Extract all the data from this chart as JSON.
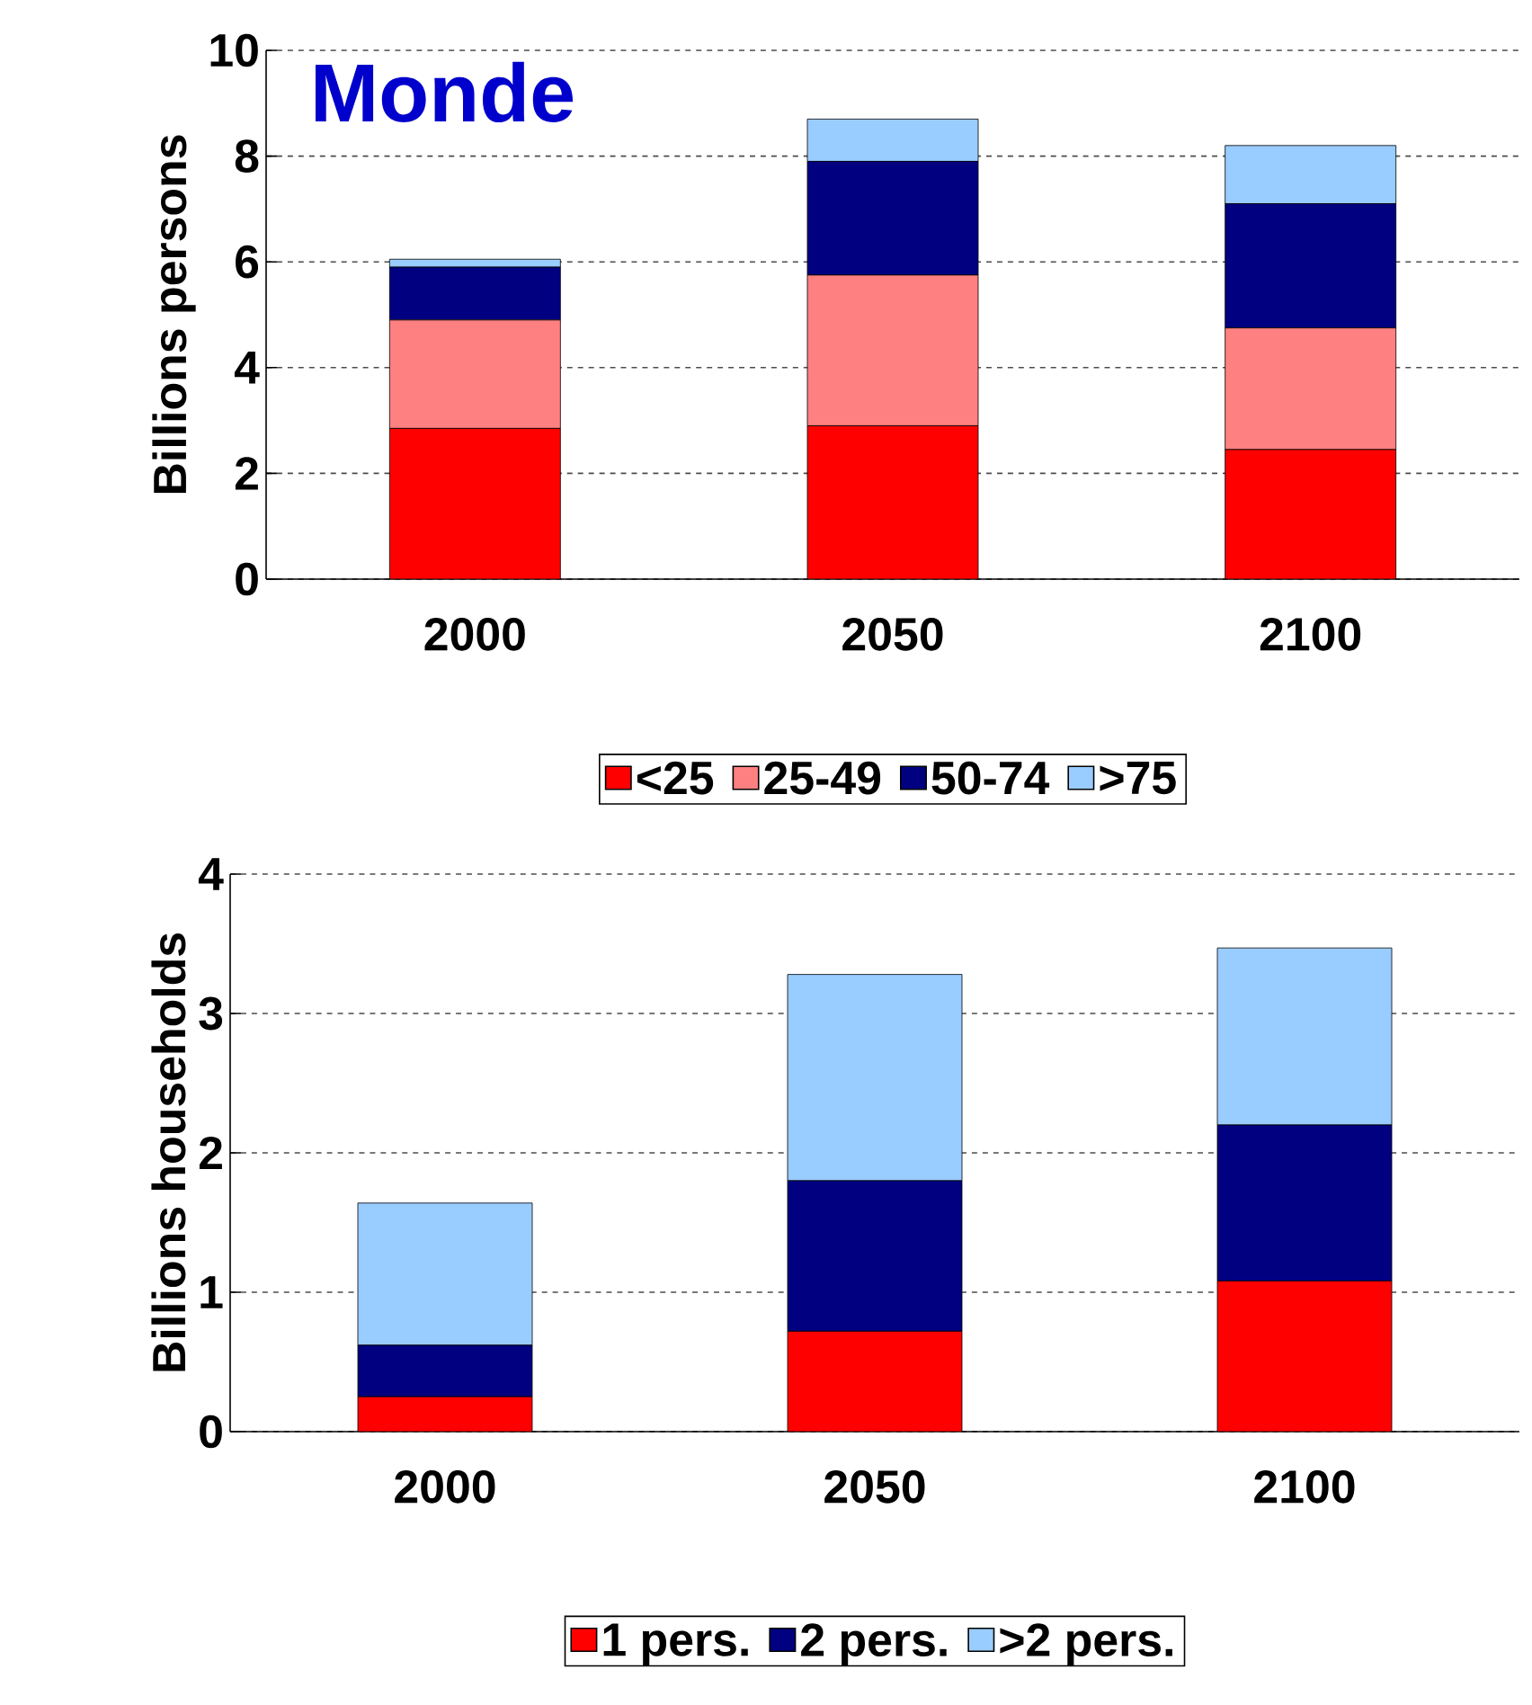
{
  "chart_data": [
    {
      "type": "bar",
      "title": "Monde",
      "ylabel": "Billions persons",
      "categories": [
        "2000",
        "2050",
        "2100"
      ],
      "stacked": true,
      "ylim": [
        0,
        10
      ],
      "yticks": [
        0,
        2,
        4,
        6,
        8,
        10
      ],
      "grid": "y",
      "legend": "bottom",
      "series": [
        {
          "name": "<25",
          "color": "#ff0000",
          "values": [
            2.85,
            2.9,
            2.45
          ]
        },
        {
          "name": "25-49",
          "color": "#ff8080",
          "values": [
            2.05,
            2.85,
            2.3
          ]
        },
        {
          "name": "50-74",
          "color": "#000080",
          "values": [
            1.0,
            2.15,
            2.35
          ]
        },
        {
          "name": ">75",
          "color": "#99ccff",
          "values": [
            0.15,
            0.8,
            1.1
          ]
        }
      ]
    },
    {
      "type": "bar",
      "ylabel": "Billions households",
      "categories": [
        "2000",
        "2050",
        "2100"
      ],
      "stacked": true,
      "ylim": [
        0,
        4
      ],
      "yticks": [
        0,
        1,
        2,
        3,
        4
      ],
      "grid": "y",
      "legend": "bottom",
      "series": [
        {
          "name": "1 pers.",
          "color": "#ff0000",
          "values": [
            0.25,
            0.72,
            1.08
          ]
        },
        {
          "name": "2 pers.",
          "color": "#000080",
          "values": [
            0.37,
            1.08,
            1.12
          ]
        },
        {
          "name": ">2 pers.",
          "color": "#99ccff",
          "values": [
            1.02,
            1.48,
            1.27
          ]
        }
      ]
    }
  ]
}
